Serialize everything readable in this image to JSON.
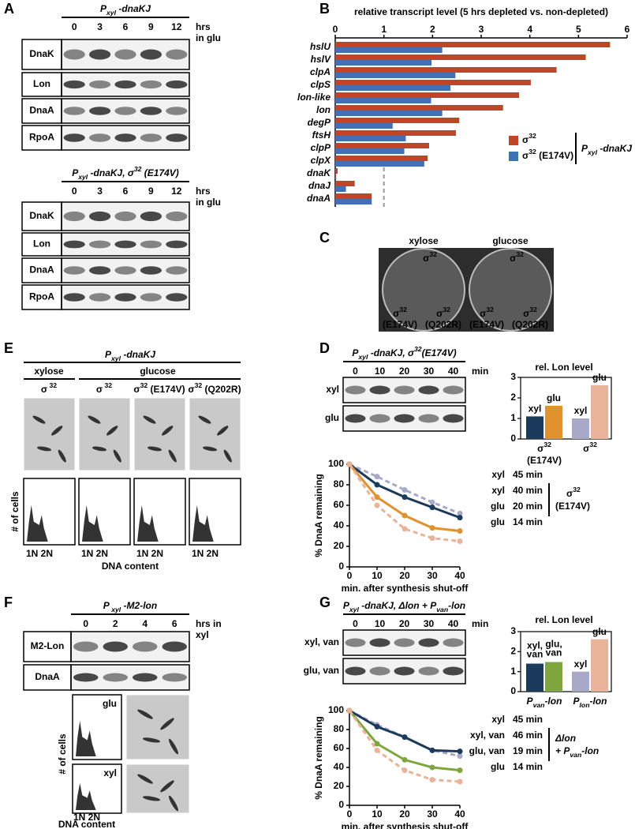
{
  "letters": {
    "A": "A",
    "B": "B",
    "C": "C",
    "D": "D",
    "E": "E",
    "F": "F",
    "G": "G"
  },
  "A": {
    "blots": [
      {
        "title": [
          "P",
          {
            "sub": "xyl"
          },
          " -dnaKJ"
        ],
        "lanes": [
          0,
          3,
          6,
          9,
          12
        ],
        "unit": [
          "hrs",
          "in glu"
        ],
        "rows": [
          "DnaK",
          "Lon",
          "DnaA",
          "RpoA"
        ]
      },
      {
        "title": [
          "P",
          {
            "sub": "xyl"
          },
          " -dnaKJ, σ",
          {
            "sup": "32"
          },
          " (E174V)"
        ],
        "lanes": [
          0,
          3,
          6,
          9,
          12
        ],
        "unit": [
          "hrs",
          "in glu"
        ],
        "rows": [
          "DnaK",
          "Lon",
          "DnaA",
          "RpoA"
        ]
      }
    ]
  },
  "C": {
    "plates": [
      {
        "medium": "xylose",
        "labels": [
          {
            "line1": [
              "σ",
              {
                "sup": "32"
              }
            ]
          },
          {
            "line1": [
              "σ",
              {
                "sup": "32"
              }
            ],
            "line2": "(E174V)"
          },
          {
            "line1": [
              "σ",
              {
                "sup": "32"
              }
            ],
            "line2": "(Q202R)"
          }
        ]
      },
      {
        "medium": "glucose",
        "labels": [
          {
            "line1": [
              "σ",
              {
                "sup": "32"
              }
            ]
          },
          {
            "line1": [
              "σ",
              {
                "sup": "32"
              }
            ],
            "line2": "(E174V)"
          },
          {
            "line1": [
              "σ",
              {
                "sup": "32"
              }
            ],
            "line2": "(Q202R)"
          }
        ]
      }
    ]
  },
  "D": {
    "blot": {
      "title": [
        "P",
        {
          "sub": "xyl"
        },
        " -dnaKJ, σ",
        {
          "sup": "32"
        },
        "(E174V)"
      ],
      "lanes": [
        0,
        10,
        20,
        30,
        40
      ],
      "unit": [
        "min"
      ],
      "rows": [
        "xyl",
        "glu"
      ]
    }
  },
  "E": {
    "title": [
      "P",
      {
        "sub": "xyl"
      },
      " -dnaKJ"
    ],
    "groups": [
      "xylose",
      "glucose"
    ],
    "columns": [
      [
        "σ",
        {
          "sup": " 32"
        }
      ],
      [
        "σ",
        {
          "sup": " 32"
        }
      ],
      [
        "σ",
        {
          "sup": "32"
        },
        " (E174V)"
      ],
      [
        "σ",
        {
          "sup": "32"
        },
        " (Q202R)"
      ]
    ],
    "ylabel": "# of cells",
    "xticks": [
      "1N 2N",
      "1N 2N",
      "1N 2N",
      "1N 2N"
    ],
    "xlabel": "DNA content"
  },
  "F": {
    "blot": {
      "title": [
        "P",
        {
          "sub": " xyl"
        },
        " -M2-lon"
      ],
      "lanes": [
        0,
        2,
        4,
        6
      ],
      "unit": [
        "hrs in",
        "xyl"
      ],
      "rows": [
        "M2-Lon",
        "DnaA"
      ]
    },
    "histograms": [
      "glu",
      "xyl"
    ],
    "ylabel": "# of cells",
    "xticks": "1N 2N",
    "xlabel": "DNA content"
  },
  "G": {
    "blot": {
      "title": [
        "P",
        {
          "sub": "xyl"
        },
        " -dnaKJ,  Δlon + P",
        {
          "sub": "van"
        },
        "-lon"
      ],
      "lanes": [
        0,
        10,
        20,
        30,
        40
      ],
      "unit": [
        "min"
      ],
      "rows": [
        "xyl, van",
        "glu, van"
      ]
    }
  },
  "chart_data": [
    {
      "type": "hbar",
      "title": "relative transcript level (5 hrs depleted vs. non-depleted)",
      "categories": [
        "hslU",
        "hslV",
        "clpA",
        "clpS",
        "lon-like",
        "lon",
        "degP",
        "ftsH",
        "clpP",
        "clpX",
        "dnaK",
        "dnaJ",
        "dnaA"
      ],
      "series": [
        {
          "name": [
            "σ",
            {
              "sup": "32"
            }
          ],
          "color": "#bf4527",
          "values": [
            5.65,
            5.15,
            4.55,
            4.02,
            3.78,
            3.45,
            2.55,
            2.48,
            1.93,
            1.9,
            0.05,
            0.4,
            0.75
          ]
        },
        {
          "name": [
            "σ",
            {
              "sup": "32"
            },
            " (E174V)"
          ],
          "color": "#3f72b5",
          "values": [
            2.2,
            1.98,
            2.47,
            2.37,
            1.97,
            2.2,
            1.18,
            1.45,
            1.42,
            1.83,
            0.02,
            0.22,
            0.75
          ]
        }
      ],
      "xlim": [
        0,
        6
      ],
      "xticks": [
        0,
        1,
        2,
        3,
        4,
        5,
        6
      ],
      "reference_line": 1,
      "legend_bracket": [
        "P",
        {
          "sub": "xyl"
        },
        " -dnaKJ"
      ]
    },
    {
      "type": "line",
      "x": [
        0,
        10,
        20,
        30,
        40
      ],
      "series": [
        {
          "name": "xyl",
          "color": "#a8a9c8",
          "dashed": true,
          "values": [
            100,
            88,
            75,
            63,
            52
          ],
          "annotation": "45 min"
        },
        {
          "name": "xyl",
          "color": "#1b3a5c",
          "dashed": false,
          "values": [
            100,
            80,
            68,
            58,
            48
          ],
          "annotation": "40 min"
        },
        {
          "name": "glu",
          "color": "#e0922f",
          "dashed": false,
          "values": [
            100,
            68,
            50,
            38,
            35
          ],
          "annotation": "20 min"
        },
        {
          "name": "glu",
          "color": "#e9b39a",
          "dashed": true,
          "values": [
            100,
            60,
            37,
            28,
            25
          ],
          "annotation": "14 min"
        }
      ],
      "xlim": [
        0,
        40
      ],
      "xticks": [
        0,
        10,
        20,
        30,
        40
      ],
      "ylim": [
        0,
        100
      ],
      "yticks": [
        0,
        20,
        40,
        60,
        80,
        100
      ],
      "ylabel": "% DnaA remaining",
      "xlabel": "min. after synthesis shut-off",
      "bracket": [
        [
          "σ",
          {
            "sup": "32"
          }
        ],
        "(E174V)"
      ]
    },
    {
      "type": "bar",
      "title": "rel. Lon level",
      "categories": [
        "xyl",
        "glu",
        "xyl",
        "glu"
      ],
      "values": [
        1.1,
        1.62,
        1.0,
        2.62
      ],
      "colors": [
        "#1b3a5c",
        "#e0922f",
        "#a8a9c8",
        "#e9b39a"
      ],
      "ylim": [
        0,
        3
      ],
      "yticks": [
        0,
        1,
        2,
        3
      ],
      "groups": [
        [
          [
            "σ",
            {
              "sup": "32"
            }
          ],
          "(E174V)"
        ],
        [
          [
            "σ",
            {
              "sup": "32"
            }
          ]
        ]
      ]
    },
    {
      "type": "line",
      "x": [
        0,
        10,
        20,
        30,
        40
      ],
      "series": [
        {
          "name": "xyl",
          "color": "#a8a9c8",
          "dashed": true,
          "values": [
            100,
            85,
            72,
            58,
            52
          ],
          "annotation": "45 min"
        },
        {
          "name": "xyl, van",
          "color": "#1b3a5c",
          "dashed": false,
          "values": [
            100,
            83,
            72,
            58,
            57
          ],
          "annotation": "46 min"
        },
        {
          "name": "glu, van",
          "color": "#7fa63e",
          "dashed": false,
          "values": [
            100,
            65,
            48,
            40,
            37
          ],
          "annotation": "19 min"
        },
        {
          "name": "glu",
          "color": "#e9b39a",
          "dashed": true,
          "values": [
            100,
            58,
            37,
            27,
            25
          ],
          "annotation": "14 min"
        }
      ],
      "xlim": [
        0,
        40
      ],
      "xticks": [
        0,
        10,
        20,
        30,
        40
      ],
      "ylim": [
        0,
        100
      ],
      "yticks": [
        0,
        20,
        40,
        60,
        80,
        100
      ],
      "ylabel": "% DnaA remaining",
      "xlabel": "min. after synthesis shut-off",
      "bracket": [
        "Δlon",
        [
          "+ P",
          {
            "sub": "van"
          },
          "-lon"
        ]
      ]
    },
    {
      "type": "bar",
      "title": "rel. Lon level",
      "categories": [
        {
          "lines": [
            "xyl,",
            "van"
          ]
        },
        {
          "lines": [
            "glu,",
            "van"
          ]
        },
        "xyl",
        "glu"
      ],
      "values": [
        1.4,
        1.48,
        1.0,
        2.62
      ],
      "colors": [
        "#1b3a5c",
        "#7fa63e",
        "#a8a9c8",
        "#e9b39a"
      ],
      "ylim": [
        0,
        3
      ],
      "yticks": [
        0,
        1,
        2,
        3
      ],
      "groups": [
        [
          [
            "P",
            {
              "sub": "van"
            },
            "-lon"
          ]
        ],
        [
          [
            "P",
            {
              "sub": "lon"
            },
            "-lon"
          ]
        ]
      ]
    }
  ]
}
